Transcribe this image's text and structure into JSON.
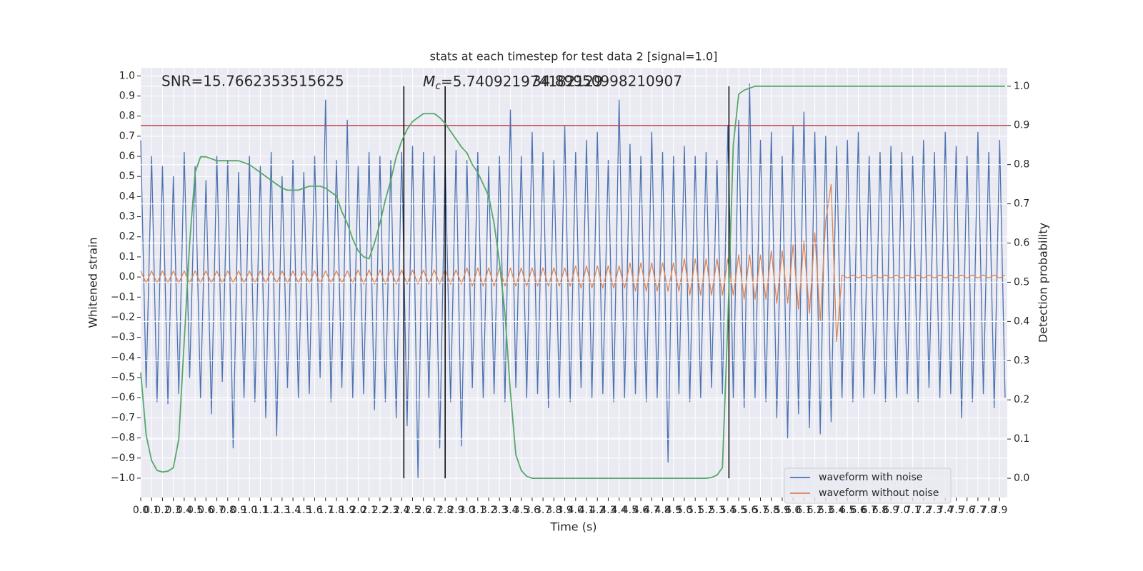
{
  "chart_data": {
    "type": "line",
    "title": "stats at each timestep for test data 2 [signal=1.0]",
    "x_label": "Time (s)",
    "y_label": "Whitened strain",
    "y2_label": "Detection probability",
    "annotations": {
      "snr": "SNR=15.7662353515625",
      "mc_symbol": "M",
      "mc_subscript": "c",
      "mc_text": "=5.740921974182129",
      "overlap_text": "34.89950998210907"
    },
    "xlim": [
      0,
      7.97
    ],
    "ylim": [
      -1.096,
      1.04
    ],
    "y2lim": [
      -0.049,
      1.047
    ],
    "grid": true,
    "legend": "lower right",
    "xticks": [
      {
        "value": 0,
        "label": "0.0"
      },
      0.1,
      0.2,
      0.3,
      0.4,
      0.5,
      0.6,
      0.7,
      0.8,
      0.9,
      {
        "value": 1,
        "label": "1.0"
      },
      1.1,
      1.2,
      1.3,
      1.4,
      1.5,
      1.6,
      1.7,
      1.8,
      1.9,
      {
        "value": 2,
        "label": "2.0"
      },
      2.1,
      2.2,
      2.3,
      2.4,
      2.5,
      2.6,
      2.7,
      2.8,
      2.9,
      {
        "value": 3,
        "label": "3.0"
      },
      3.1,
      3.2,
      3.3,
      3.4,
      3.5,
      3.6,
      3.7,
      3.8,
      3.9,
      {
        "value": 4,
        "label": "4.0"
      },
      4.1,
      4.2,
      4.3,
      4.4,
      4.5,
      4.6,
      4.7,
      4.8,
      4.9,
      {
        "value": 5,
        "label": "5.0"
      },
      5.1,
      5.2,
      5.3,
      5.4,
      5.5,
      5.6,
      5.7,
      5.8,
      5.9,
      {
        "value": 6,
        "label": "6.0"
      },
      6.1,
      6.2,
      6.3,
      6.4,
      6.5,
      6.6,
      6.7,
      6.8,
      6.9,
      {
        "value": 7,
        "label": "7.0"
      },
      7.1,
      7.2,
      7.3,
      7.4,
      7.5,
      7.6,
      7.7,
      7.8,
      7.9
    ],
    "yticks": [
      {
        "value": -1,
        "label": "−1.0"
      },
      {
        "value": -0.9,
        "label": "−0.9"
      },
      {
        "value": -0.8,
        "label": "−0.8"
      },
      {
        "value": -0.7,
        "label": "−0.7"
      },
      {
        "value": -0.6,
        "label": "−0.6"
      },
      {
        "value": -0.5,
        "label": "−0.5"
      },
      {
        "value": -0.4,
        "label": "−0.4"
      },
      {
        "value": -0.3,
        "label": "−0.3"
      },
      {
        "value": -0.2,
        "label": "−0.2"
      },
      {
        "value": -0.1,
        "label": "−0.1"
      },
      {
        "value": 0,
        "label": "0.0"
      },
      0.1,
      0.2,
      0.3,
      0.4,
      0.5,
      0.6,
      0.7,
      0.8,
      0.9,
      {
        "value": 1,
        "label": "1.0"
      }
    ],
    "y2ticks": [
      {
        "value": 0,
        "label": "0.0"
      },
      0.1,
      0.2,
      0.3,
      0.4,
      0.5,
      0.6,
      0.7,
      0.8,
      0.9,
      {
        "value": 1,
        "label": "1.0"
      }
    ],
    "x": [
      0,
      0.05,
      0.1,
      0.15,
      0.2,
      0.25,
      0.3,
      0.35,
      0.4,
      0.45,
      0.5,
      0.55,
      0.6,
      0.65,
      0.7,
      0.75,
      0.8,
      0.85,
      0.9,
      0.95,
      1,
      1.05,
      1.1,
      1.15,
      1.2,
      1.25,
      1.3,
      1.35,
      1.4,
      1.45,
      1.5,
      1.55,
      1.6,
      1.65,
      1.7,
      1.75,
      1.8,
      1.85,
      1.9,
      1.95,
      2,
      2.05,
      2.1,
      2.15,
      2.2,
      2.25,
      2.3,
      2.35,
      2.4,
      2.45,
      2.5,
      2.55,
      2.6,
      2.65,
      2.7,
      2.75,
      2.8,
      2.85,
      2.9,
      2.95,
      3,
      3.05,
      3.1,
      3.15,
      3.2,
      3.25,
      3.3,
      3.35,
      3.4,
      3.45,
      3.5,
      3.55,
      3.6,
      3.65,
      3.7,
      3.75,
      3.8,
      3.85,
      3.9,
      3.95,
      4,
      4.05,
      4.1,
      4.15,
      4.2,
      4.25,
      4.3,
      4.35,
      4.4,
      4.45,
      4.5,
      4.55,
      4.6,
      4.65,
      4.7,
      4.75,
      4.8,
      4.85,
      4.9,
      4.95,
      5,
      5.05,
      5.1,
      5.15,
      5.2,
      5.25,
      5.3,
      5.35,
      5.4,
      5.45,
      5.5,
      5.55,
      5.6,
      5.65,
      5.7,
      5.75,
      5.8,
      5.85,
      5.9,
      5.95,
      6,
      6.05,
      6.1,
      6.15,
      6.2,
      6.25,
      6.3,
      6.35,
      6.4,
      6.45,
      6.5,
      6.55,
      6.6,
      6.65,
      6.7,
      6.75,
      6.8,
      6.85,
      6.9,
      6.95,
      7,
      7.05,
      7.1,
      7.15,
      7.2,
      7.25,
      7.3,
      7.35,
      7.4,
      7.45,
      7.5,
      7.55,
      7.6,
      7.65,
      7.7,
      7.75,
      7.8,
      7.85,
      7.9,
      7.95
    ],
    "series": [
      {
        "name": "waveform with noise",
        "color": "#4c72b0",
        "values": [
          0.68,
          -0.55,
          0.6,
          -0.62,
          0.55,
          -0.63,
          0.5,
          -0.58,
          0.62,
          -0.5,
          0.55,
          -0.6,
          0.48,
          -0.68,
          0.6,
          -0.52,
          0.58,
          -0.85,
          0.52,
          -0.6,
          0.6,
          -0.62,
          0.55,
          -0.7,
          0.62,
          -0.79,
          0.5,
          -0.55,
          0.58,
          -0.6,
          0.52,
          -0.58,
          0.6,
          -0.5,
          0.88,
          -0.62,
          0.58,
          -0.55,
          0.78,
          -0.6,
          0.55,
          -0.58,
          0.62,
          -0.66,
          0.6,
          -0.62,
          0.58,
          -0.7,
          0.62,
          -0.74,
          0.65,
          -1.0,
          0.62,
          -0.6,
          0.6,
          -0.85,
          0.58,
          -0.62,
          0.63,
          -0.84,
          0.58,
          -0.55,
          0.62,
          -0.6,
          0.55,
          -0.58,
          0.6,
          -0.62,
          0.83,
          -0.55,
          0.6,
          -0.6,
          0.72,
          -0.58,
          0.62,
          -0.65,
          0.58,
          -0.6,
          0.75,
          -0.62,
          0.62,
          -0.55,
          0.68,
          -0.6,
          0.72,
          -0.58,
          0.58,
          -0.62,
          0.88,
          -0.6,
          0.66,
          -0.58,
          0.6,
          -0.62,
          0.72,
          -0.6,
          0.62,
          -0.92,
          0.6,
          -0.58,
          0.65,
          -0.62,
          0.6,
          -0.6,
          0.62,
          -0.55,
          0.58,
          -0.58,
          0.75,
          -0.6,
          0.78,
          -0.65,
          0.96,
          -0.6,
          0.68,
          -0.62,
          0.72,
          -0.7,
          0.6,
          -0.8,
          0.75,
          -0.68,
          0.82,
          -0.75,
          0.72,
          -0.78,
          0.7,
          -0.72,
          0.65,
          -0.6,
          0.68,
          -0.62,
          0.72,
          -0.6,
          0.6,
          -0.58,
          0.62,
          -0.62,
          0.65,
          -0.6,
          0.62,
          -0.58,
          0.6,
          -0.62,
          0.68,
          -0.55,
          0.62,
          -0.6,
          0.72,
          -0.58,
          0.65,
          -0.7,
          0.6,
          -0.62,
          0.72,
          -0.58,
          0.62,
          -0.65,
          0.68,
          -0.6
        ]
      },
      {
        "name": "waveform without noise",
        "color": "#dd8452",
        "values": [
          0.03,
          -0.03,
          0.03,
          -0.03,
          0.03,
          -0.03,
          0.03,
          -0.03,
          0.03,
          -0.03,
          0.03,
          -0.03,
          0.03,
          -0.03,
          0.03,
          -0.03,
          0.03,
          -0.03,
          0.03,
          -0.03,
          0.03,
          -0.03,
          0.03,
          -0.03,
          0.03,
          -0.03,
          0.03,
          -0.03,
          0.03,
          -0.03,
          0.03,
          -0.03,
          0.03,
          -0.03,
          0.03,
          -0.03,
          0.03,
          -0.03,
          0.03,
          -0.03,
          0.035,
          -0.035,
          0.035,
          -0.035,
          0.035,
          -0.035,
          0.035,
          -0.035,
          0.035,
          -0.035,
          0.035,
          -0.035,
          0.035,
          -0.035,
          0.035,
          -0.035,
          0.035,
          -0.035,
          0.035,
          -0.035,
          0.045,
          -0.045,
          0.045,
          -0.045,
          0.045,
          -0.045,
          0.045,
          -0.045,
          0.045,
          -0.045,
          0.045,
          -0.045,
          0.045,
          -0.045,
          0.045,
          -0.045,
          0.045,
          -0.045,
          0.045,
          -0.045,
          0.055,
          -0.055,
          0.055,
          -0.055,
          0.055,
          -0.055,
          0.055,
          -0.055,
          0.055,
          -0.055,
          0.07,
          -0.07,
          0.07,
          -0.07,
          0.07,
          -0.07,
          0.07,
          -0.07,
          0.07,
          -0.07,
          0.09,
          -0.09,
          0.09,
          -0.09,
          0.09,
          -0.09,
          0.09,
          -0.09,
          0.09,
          -0.09,
          0.11,
          -0.11,
          0.11,
          -0.11,
          0.11,
          -0.11,
          0.13,
          -0.13,
          0.13,
          -0.13,
          0.16,
          -0.16,
          0.18,
          -0.18,
          0.22,
          -0.22,
          0.28,
          0.46,
          -0.32,
          0.01,
          -0.005,
          0.01,
          -0.005,
          0.01,
          -0.005,
          0.01,
          -0.005,
          0.01,
          -0.005,
          0.01,
          -0.005,
          0.01,
          -0.005,
          0.01,
          -0.005,
          0.01,
          -0.005,
          0.01,
          -0.005,
          0.01,
          -0.005,
          0.01,
          -0.005,
          0.01,
          -0.005,
          0.01,
          -0.005,
          0.01,
          -0.005,
          0.01
        ]
      }
    ],
    "probability": {
      "color": "#55a868",
      "axis": "y2",
      "values": [
        0.27,
        0.11,
        0.045,
        0.02,
        0.016,
        0.018,
        0.027,
        0.1,
        0.35,
        0.6,
        0.78,
        0.82,
        0.82,
        0.815,
        0.81,
        0.81,
        0.81,
        0.81,
        0.81,
        0.805,
        0.8,
        0.79,
        0.78,
        0.77,
        0.76,
        0.75,
        0.74,
        0.735,
        0.735,
        0.735,
        0.74,
        0.745,
        0.745,
        0.745,
        0.74,
        0.73,
        0.72,
        0.68,
        0.65,
        0.61,
        0.58,
        0.565,
        0.56,
        0.6,
        0.65,
        0.71,
        0.76,
        0.82,
        0.86,
        0.89,
        0.91,
        0.92,
        0.93,
        0.93,
        0.93,
        0.92,
        0.905,
        0.885,
        0.865,
        0.845,
        0.83,
        0.8,
        0.78,
        0.75,
        0.72,
        0.65,
        0.55,
        0.42,
        0.22,
        0.06,
        0.02,
        0.005,
        0,
        0,
        0,
        0,
        0,
        0,
        0,
        0,
        0,
        0,
        0,
        0,
        0,
        0,
        0,
        0,
        0,
        0,
        0,
        0,
        0,
        0,
        0,
        0,
        0,
        0,
        0,
        0,
        0,
        0,
        0,
        0,
        0,
        0.002,
        0.008,
        0.027,
        0.4,
        0.85,
        0.98,
        0.99,
        0.995,
        1,
        1,
        1,
        1,
        1,
        1,
        1,
        1,
        1,
        1,
        1,
        1,
        1,
        1,
        1,
        1,
        1,
        1,
        1,
        1,
        1,
        1,
        1,
        1,
        1,
        1,
        1,
        1,
        1,
        1,
        1,
        1,
        1,
        1,
        1,
        1,
        1,
        1,
        1,
        1,
        1,
        1,
        1,
        1,
        1,
        1,
        1
      ]
    },
    "threshold": {
      "y": 0.9,
      "axis": "y2",
      "color": "#c44e52"
    },
    "vlines": {
      "x": [
        2.42,
        2.8,
        5.41
      ],
      "ymin": 0,
      "ymax": 1,
      "axis": "y2",
      "color": "#000000"
    }
  }
}
